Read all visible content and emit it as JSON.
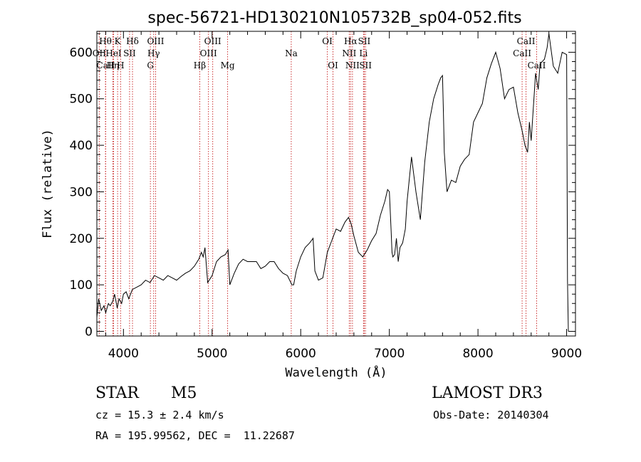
{
  "chart_data": {
    "type": "line",
    "title": "spec-56721-HD130210N105732B_sp04-052.fits",
    "xlabel": "Wavelength (Å)",
    "ylabel": "Flux (relative)",
    "xlim": [
      3700,
      9100
    ],
    "ylim": [
      -10,
      645
    ],
    "xticks": [
      4000,
      5000,
      6000,
      7000,
      8000,
      9000
    ],
    "yticks": [
      0,
      100,
      200,
      300,
      400,
      500,
      600
    ],
    "series": [
      {
        "name": "flux",
        "x": [
          3700,
          3720,
          3750,
          3780,
          3800,
          3830,
          3850,
          3880,
          3900,
          3930,
          3950,
          3980,
          4000,
          4030,
          4060,
          4100,
          4150,
          4200,
          4250,
          4300,
          4350,
          4400,
          4450,
          4500,
          4550,
          4600,
          4650,
          4700,
          4750,
          4800,
          4850,
          4880,
          4900,
          4920,
          4950,
          5000,
          5050,
          5100,
          5150,
          5180,
          5200,
          5250,
          5300,
          5350,
          5400,
          5450,
          5500,
          5550,
          5600,
          5650,
          5700,
          5750,
          5800,
          5850,
          5900,
          5920,
          5950,
          6000,
          6050,
          6100,
          6140,
          6160,
          6180,
          6200,
          6250,
          6300,
          6350,
          6400,
          6450,
          6500,
          6540,
          6570,
          6600,
          6650,
          6700,
          6750,
          6800,
          6850,
          6900,
          6950,
          6980,
          7000,
          7020,
          7030,
          7040,
          7060,
          7080,
          7100,
          7120,
          7150,
          7180,
          7200,
          7250,
          7300,
          7350,
          7400,
          7450,
          7500,
          7550,
          7580,
          7600,
          7610,
          7620,
          7650,
          7700,
          7750,
          7800,
          7850,
          7900,
          7950,
          8000,
          8050,
          8100,
          8150,
          8200,
          8250,
          8300,
          8350,
          8400,
          8450,
          8500,
          8530,
          8560,
          8580,
          8600,
          8650,
          8680,
          8700,
          8750,
          8780,
          8800,
          8850,
          8900,
          8950,
          9000,
          9010,
          9020
        ],
        "y": [
          30,
          70,
          45,
          55,
          40,
          60,
          55,
          65,
          80,
          50,
          70,
          60,
          80,
          85,
          70,
          90,
          95,
          100,
          110,
          105,
          120,
          115,
          110,
          120,
          115,
          110,
          118,
          125,
          130,
          140,
          155,
          170,
          160,
          180,
          105,
          120,
          150,
          160,
          165,
          175,
          100,
          125,
          145,
          155,
          150,
          150,
          150,
          135,
          140,
          150,
          150,
          135,
          125,
          120,
          100,
          100,
          130,
          160,
          180,
          190,
          200,
          130,
          120,
          110,
          115,
          170,
          195,
          220,
          215,
          235,
          245,
          230,
          205,
          170,
          160,
          175,
          195,
          210,
          250,
          280,
          305,
          300,
          215,
          170,
          160,
          165,
          200,
          150,
          180,
          190,
          220,
          280,
          375,
          300,
          240,
          365,
          450,
          500,
          530,
          545,
          550,
          470,
          385,
          300,
          325,
          320,
          355,
          370,
          380,
          450,
          470,
          490,
          545,
          575,
          600,
          565,
          500,
          520,
          525,
          470,
          430,
          400,
          385,
          450,
          410,
          555,
          520,
          575,
          585,
          610,
          640,
          570,
          555,
          600,
          595,
          110,
          0
        ]
      }
    ],
    "lines": [
      {
        "label": "Hθ",
        "x": 3797,
        "row": 0
      },
      {
        "label": "OII",
        "x": 3727,
        "row": 1
      },
      {
        "label": "CaII",
        "x": 3800,
        "row": 2
      },
      {
        "label": "K",
        "x": 3934,
        "row": 0
      },
      {
        "label": "HeI",
        "x": 3889,
        "row": 1
      },
      {
        "label": "Hη",
        "x": 3880,
        "row": 2
      },
      {
        "label": "SII",
        "x": 4069,
        "row": 1
      },
      {
        "label": "H",
        "x": 3968,
        "row": 2
      },
      {
        "label": "Hδ",
        "x": 4102,
        "row": 0
      },
      {
        "label": "OIII",
        "x": 4363,
        "row": 0
      },
      {
        "label": "Hγ",
        "x": 4341,
        "row": 1
      },
      {
        "label": "G",
        "x": 4304,
        "row": 2
      },
      {
        "label": "OIII",
        "x": 5007,
        "row": 0
      },
      {
        "label": "OIII",
        "x": 4959,
        "row": 1
      },
      {
        "label": "Hβ",
        "x": 4861,
        "row": 2
      },
      {
        "label": "Mg",
        "x": 5175,
        "row": 2
      },
      {
        "label": "Na",
        "x": 5893,
        "row": 1
      },
      {
        "label": "OI",
        "x": 6300,
        "row": 0
      },
      {
        "label": "OI",
        "x": 6364,
        "row": 2
      },
      {
        "label": "Hα",
        "x": 6563,
        "row": 0
      },
      {
        "label": "NII",
        "x": 6548,
        "row": 1
      },
      {
        "label": "NII",
        "x": 6584,
        "row": 2
      },
      {
        "label": "SII",
        "x": 6717,
        "row": 0
      },
      {
        "label": "Li",
        "x": 6708,
        "row": 1
      },
      {
        "label": "SII",
        "x": 6731,
        "row": 2
      },
      {
        "label": "CaII",
        "x": 8542,
        "row": 0
      },
      {
        "label": "CaII",
        "x": 8498,
        "row": 1
      },
      {
        "label": "CaII",
        "x": 8662,
        "row": 2
      }
    ]
  },
  "info": {
    "object_class": "STAR",
    "subclass": "M5",
    "survey": "LAMOST DR3",
    "cz": "cz = 15.3 ± 2.4 km/s",
    "obs_date": "Obs-Date: 20140304",
    "coords": "RA = 195.99562, DEC =  11.22687"
  },
  "colors": {
    "line": "#000000",
    "marker": "#cc3333",
    "axis": "#000000"
  }
}
